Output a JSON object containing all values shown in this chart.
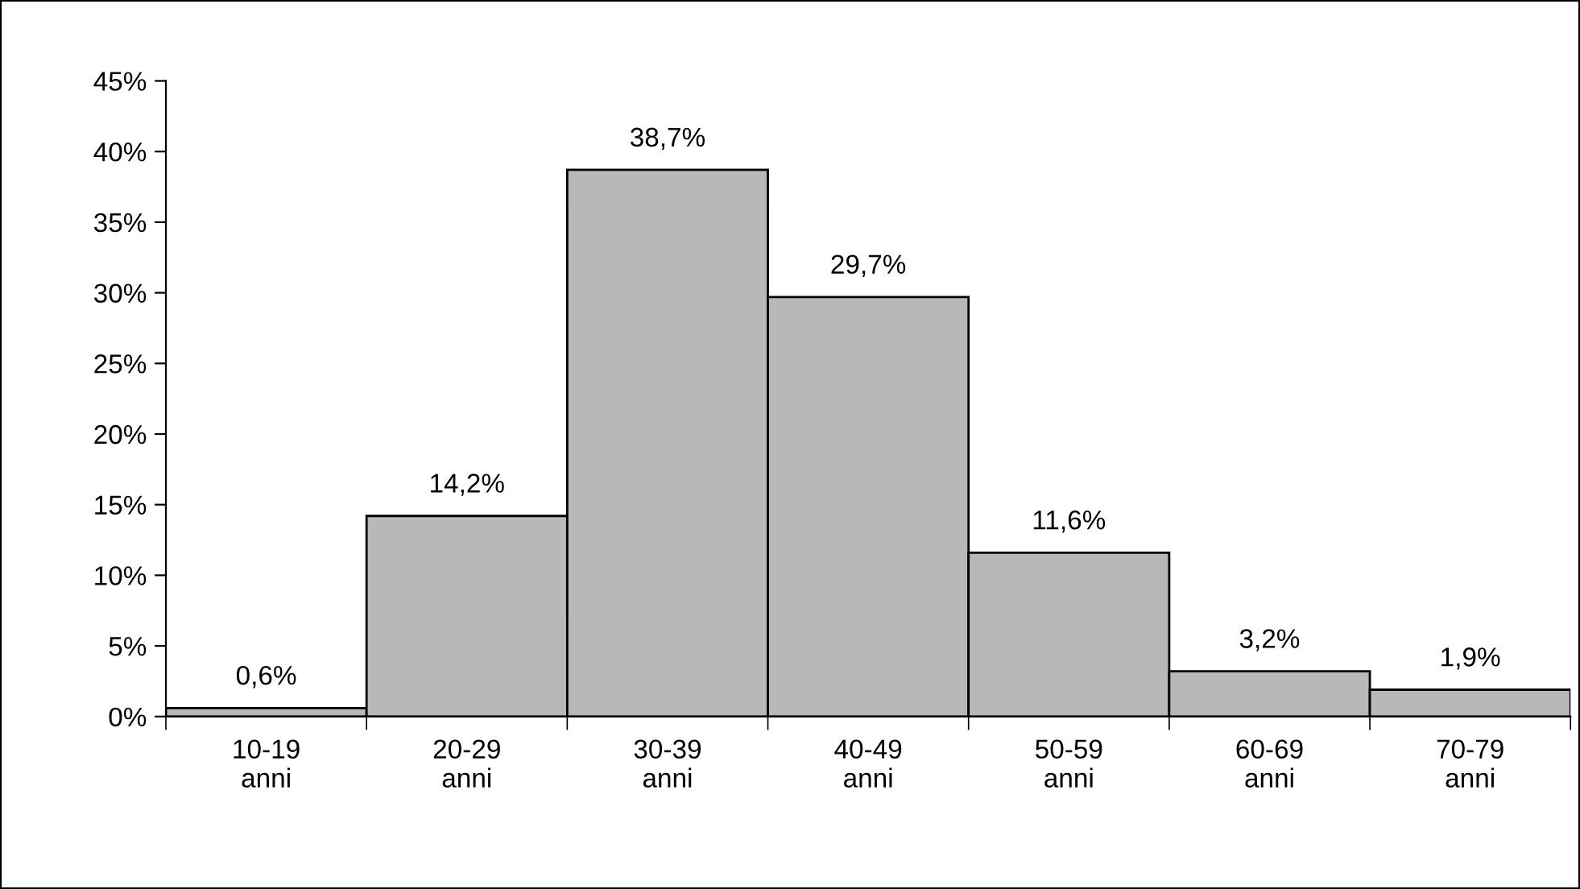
{
  "chart_data": {
    "type": "bar",
    "categories": [
      "10-19\nanni",
      "20-29\nanni",
      "30-39\nanni",
      "40-49\nanni",
      "50-59\nanni",
      "60-69\nanni",
      "70-79\nanni"
    ],
    "values": [
      0.6,
      14.2,
      38.7,
      29.7,
      11.6,
      3.2,
      1.9
    ],
    "value_labels": [
      "0,6%",
      "14,2%",
      "38,7%",
      "29,7%",
      "11,6%",
      "3,2%",
      "1,9%"
    ],
    "color": "#b8b8b8",
    "ylim": [
      0,
      45
    ],
    "yticks": [
      {
        "value": 0,
        "label": "0%"
      },
      {
        "value": 5,
        "label": "5%"
      },
      {
        "value": 10,
        "label": "10%"
      },
      {
        "value": 15,
        "label": "15%"
      },
      {
        "value": 20,
        "label": "20%"
      },
      {
        "value": 25,
        "label": "25%"
      },
      {
        "value": 30,
        "label": "30%"
      },
      {
        "value": 35,
        "label": "35%"
      },
      {
        "value": 40,
        "label": "40%"
      },
      {
        "value": 45,
        "label": "45%"
      }
    ],
    "grid": false,
    "legend": false
  }
}
